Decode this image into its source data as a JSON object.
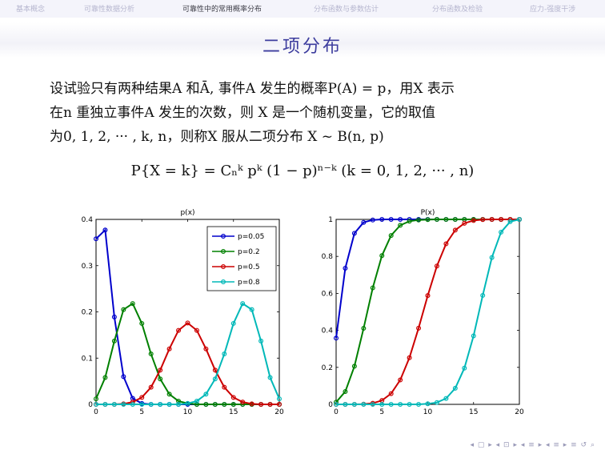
{
  "nav": {
    "items": [
      "基本概念",
      "可靠性数据分析",
      "可靠性中的常用概率分布",
      "分布函数与参数估计",
      "分布函数及检验",
      "应力-强度干涉"
    ],
    "active_index": 2
  },
  "slide": {
    "title": "二项分布",
    "paragraph_lines": [
      "设试验只有两种结果A 和Ā, 事件A 发生的概率P(A) = p，用X 表示",
      "在n 重独立事件A 发生的次数，则 X 是一个随机变量，它的取值",
      "为0, 1, 2, ··· , k, n，则称X 服从二项分布 X ~ B(n, p)"
    ],
    "formula": "P{X = k} = Cₙᵏ pᵏ (1 − p)ⁿ⁻ᵏ      (k = 0, 1, 2, ··· , n)"
  },
  "beamer_nav": "◂ ▢ ▸ ◂ ⊡ ▸ ◂ ≡ ▸ ◂ ≡ ▸ ≡ ↺ ⌕",
  "colors": {
    "p005": "#0000cc",
    "p02": "#008000",
    "p05": "#cc0000",
    "p08": "#00b8b8",
    "title": "#3d3d9e"
  },
  "chart_data": [
    {
      "type": "line",
      "title": "p(x)",
      "n": 20,
      "x": [
        0,
        1,
        2,
        3,
        4,
        5,
        6,
        7,
        8,
        9,
        10,
        11,
        12,
        13,
        14,
        15,
        16,
        17,
        18,
        19,
        20
      ],
      "xlim": [
        0,
        20
      ],
      "ylim": [
        0,
        0.4
      ],
      "xticks": [
        "0",
        "5",
        "10",
        "15",
        "20"
      ],
      "yticks": [
        "0",
        "0.1",
        "0.2",
        "0.3",
        "0.4"
      ],
      "legend_position": "top-right",
      "series": [
        {
          "name": "p=0.05",
          "values": [
            0.358,
            0.377,
            0.189,
            0.06,
            0.013,
            0.002,
            0,
            0,
            0,
            0,
            0,
            0,
            0,
            0,
            0,
            0,
            0,
            0,
            0,
            0,
            0
          ]
        },
        {
          "name": "p=0.2",
          "values": [
            0.012,
            0.058,
            0.137,
            0.205,
            0.218,
            0.175,
            0.109,
            0.055,
            0.022,
            0.007,
            0.002,
            0,
            0,
            0,
            0,
            0,
            0,
            0,
            0,
            0,
            0
          ]
        },
        {
          "name": "p=0.5",
          "values": [
            0,
            0,
            0,
            0.001,
            0.005,
            0.015,
            0.037,
            0.074,
            0.12,
            0.16,
            0.176,
            0.16,
            0.12,
            0.074,
            0.037,
            0.015,
            0.005,
            0.001,
            0,
            0,
            0
          ]
        },
        {
          "name": "p=0.8",
          "values": [
            0,
            0,
            0,
            0,
            0,
            0,
            0,
            0,
            0,
            0,
            0.002,
            0.007,
            0.022,
            0.055,
            0.109,
            0.175,
            0.218,
            0.205,
            0.137,
            0.058,
            0.012
          ]
        }
      ]
    },
    {
      "type": "line",
      "title": "P(x)",
      "n": 20,
      "x": [
        0,
        1,
        2,
        3,
        4,
        5,
        6,
        7,
        8,
        9,
        10,
        11,
        12,
        13,
        14,
        15,
        16,
        17,
        18,
        19,
        20
      ],
      "xlim": [
        0,
        20
      ],
      "ylim": [
        0,
        1
      ],
      "xticks": [
        "0",
        "5",
        "10",
        "15",
        "20"
      ],
      "yticks": [
        "0",
        "0.2",
        "0.4",
        "0.6",
        "0.8",
        "1"
      ],
      "series": [
        {
          "name": "p=0.05",
          "values": [
            0.358,
            0.736,
            0.925,
            0.984,
            0.997,
            1,
            1,
            1,
            1,
            1,
            1,
            1,
            1,
            1,
            1,
            1,
            1,
            1,
            1,
            1,
            1
          ]
        },
        {
          "name": "p=0.2",
          "values": [
            0.012,
            0.069,
            0.206,
            0.411,
            0.63,
            0.804,
            0.913,
            0.968,
            0.99,
            0.997,
            0.999,
            1,
            1,
            1,
            1,
            1,
            1,
            1,
            1,
            1,
            1
          ]
        },
        {
          "name": "p=0.5",
          "values": [
            0,
            0,
            0,
            0.001,
            0.006,
            0.021,
            0.058,
            0.132,
            0.252,
            0.412,
            0.588,
            0.748,
            0.868,
            0.942,
            0.979,
            0.994,
            0.999,
            1,
            1,
            1,
            1
          ]
        },
        {
          "name": "p=0.8",
          "values": [
            0,
            0,
            0,
            0,
            0,
            0,
            0,
            0,
            0,
            0,
            0.003,
            0.01,
            0.032,
            0.087,
            0.196,
            0.37,
            0.589,
            0.794,
            0.931,
            0.988,
            1
          ]
        }
      ]
    }
  ]
}
